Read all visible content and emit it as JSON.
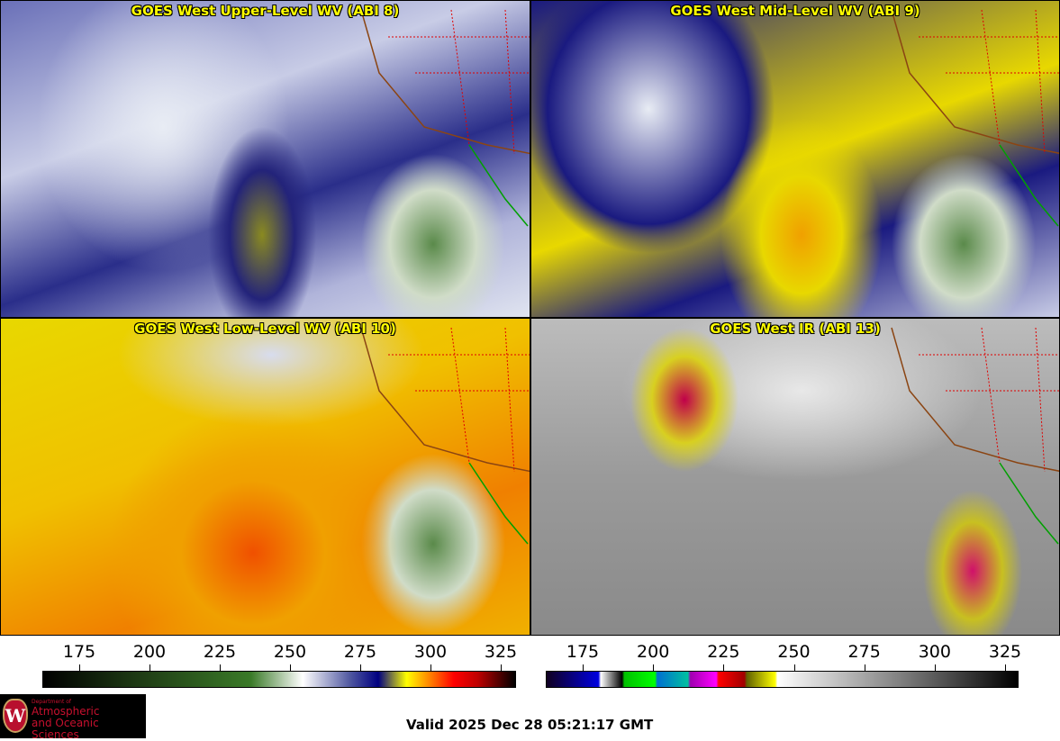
{
  "panels": [
    {
      "title": "GOES West Upper-Level WV (ABI 8)"
    },
    {
      "title": "GOES West Mid-Level WV (ABI 9)"
    },
    {
      "title": "GOES West Low-Level WV (ABI 10)"
    },
    {
      "title": "GOES West IR (ABI 13)"
    }
  ],
  "colorbars": {
    "wv": {
      "ticks": [
        "175",
        "200",
        "225",
        "250",
        "275",
        "300",
        "325"
      ],
      "range_k": [
        162,
        330
      ]
    },
    "ir": {
      "ticks": [
        "175",
        "200",
        "225",
        "250",
        "275",
        "300",
        "325"
      ],
      "range_k": [
        162,
        330
      ]
    }
  },
  "logo": {
    "line1": "Department of",
    "line2": "Atmospheric",
    "line3": "and Oceanic Sciences",
    "seal": "W"
  },
  "valid_time": "Valid 2025 Dec 28 05:21:17 GMT"
}
